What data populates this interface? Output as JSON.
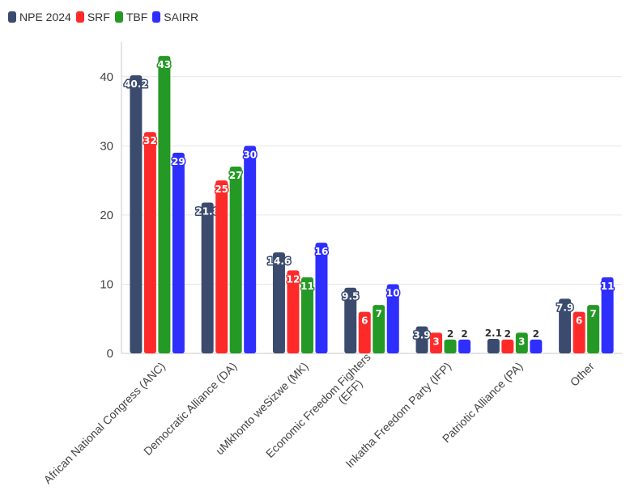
{
  "chart_data": {
    "type": "bar",
    "categories": [
      [
        "African National Congress (ANC)"
      ],
      [
        "Democratic Alliance (DA)"
      ],
      [
        "uMkhonto weSizwe (MK)"
      ],
      [
        "Economic Freedom Fighters",
        "(EFF)"
      ],
      [
        "Inkatha Freedom Party (IFP)"
      ],
      [
        "Patriotic Alliance (PA)"
      ],
      [
        "Other"
      ]
    ],
    "series": [
      {
        "name": "NPE 2024",
        "color": "#3b4b6e",
        "values": [
          40.2,
          21.8,
          14.6,
          9.5,
          3.9,
          2.1,
          7.9
        ]
      },
      {
        "name": "SRF",
        "color": "#fe2a2a",
        "values": [
          32,
          25,
          12,
          6,
          3,
          2,
          6
        ]
      },
      {
        "name": "TBF",
        "color": "#259925",
        "values": [
          43,
          27,
          11,
          7,
          2,
          3,
          7
        ]
      },
      {
        "name": "SAIRR",
        "color": "#2e2efe",
        "values": [
          29,
          30,
          16,
          10,
          2,
          2,
          11
        ]
      }
    ],
    "y_ticks": [
      0,
      10,
      20,
      30,
      40
    ],
    "ylim": [
      0,
      45
    ],
    "grid": true,
    "legend_position": "top-left",
    "title": "",
    "xlabel": "",
    "ylabel": ""
  }
}
